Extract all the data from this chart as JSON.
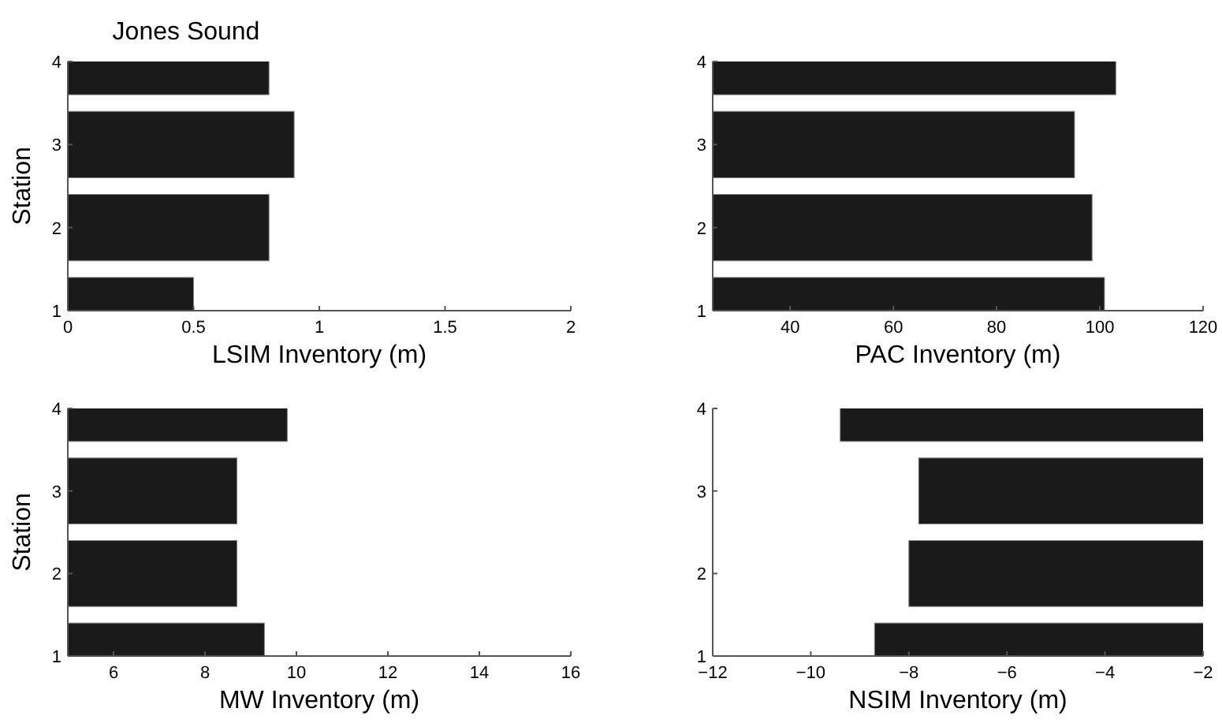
{
  "chart_data": [
    {
      "type": "bar",
      "orientation": "horizontal",
      "title": "Jones Sound",
      "ylabel": "Station",
      "xlabel": "LSIM Inventory (m)",
      "categories": [
        "4",
        "3",
        "2",
        "1"
      ],
      "values": [
        0.8,
        0.9,
        0.8,
        0.5
      ],
      "color": "#1a1a1a",
      "xlim": [
        0,
        2
      ],
      "xticks": [
        0,
        0.5,
        1,
        1.5,
        2
      ]
    },
    {
      "type": "bar",
      "orientation": "horizontal",
      "xlabel": "PAC Inventory (m)",
      "categories": [
        "4",
        "3",
        "2",
        "1"
      ],
      "values": [
        103.1,
        95.1,
        98.5,
        100.9
      ],
      "color": "#1a1a1a",
      "xlim": [
        25,
        120
      ],
      "xticks": [
        40,
        60,
        80,
        100,
        120
      ]
    },
    {
      "type": "bar",
      "orientation": "horizontal",
      "ylabel": "Station",
      "xlabel": "MW Inventory (m)",
      "categories": [
        "4",
        "3",
        "2",
        "1"
      ],
      "values": [
        9.8,
        8.7,
        8.7,
        9.3
      ],
      "color": "#1a1a1a",
      "xlim": [
        5,
        16
      ],
      "xticks": [
        6,
        8,
        10,
        12,
        14,
        16
      ]
    },
    {
      "type": "bar",
      "orientation": "horizontal",
      "xlabel": "NSIM Inventory (m)",
      "categories": [
        "4",
        "3",
        "2",
        "1"
      ],
      "values": [
        -9.4,
        -7.8,
        -8.0,
        -8.7
      ],
      "color": "#1a1a1a",
      "xlim": [
        -12,
        -2
      ],
      "xticks": [
        -12,
        -10,
        -8,
        -6,
        -4,
        -2
      ]
    }
  ]
}
